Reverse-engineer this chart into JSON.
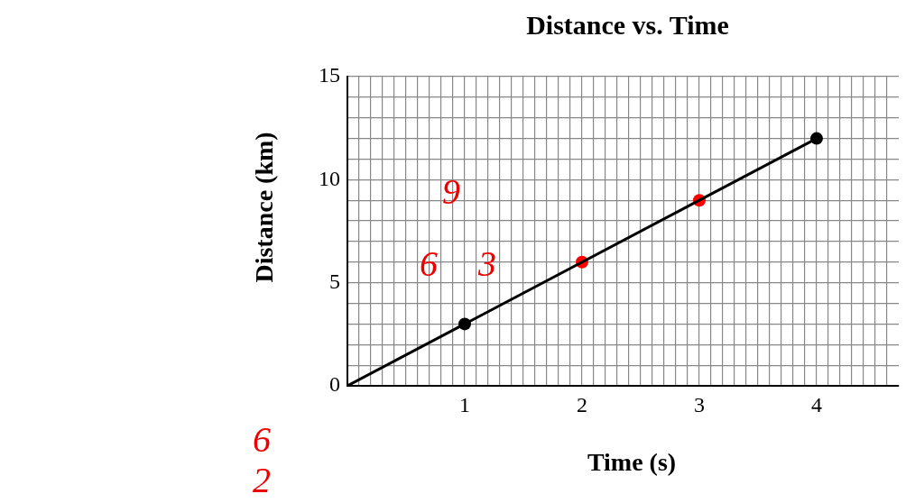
{
  "chart_data": {
    "type": "line",
    "title": "Distance vs. Time",
    "xlabel": "Time (s)",
    "ylabel": "Distance (km)",
    "xlim": [
      0,
      4.7
    ],
    "ylim": [
      0,
      15
    ],
    "xticks": [
      {
        "value": 0,
        "label": null
      },
      {
        "value": 0.1,
        "label": null
      },
      {
        "value": 0.2,
        "label": null
      },
      {
        "value": 0.3,
        "label": null
      },
      {
        "value": 0.4,
        "label": null
      },
      {
        "value": 0.5,
        "label": null
      },
      {
        "value": 0.6,
        "label": null
      },
      {
        "value": 0.7,
        "label": null
      },
      {
        "value": 0.8,
        "label": null
      },
      {
        "value": 0.9,
        "label": null
      },
      1,
      {
        "value": 1.1,
        "label": null
      },
      {
        "value": 1.2,
        "label": null
      },
      {
        "value": 1.3,
        "label": null
      },
      {
        "value": 1.4,
        "label": null
      },
      {
        "value": 1.5,
        "label": null
      },
      {
        "value": 1.6,
        "label": null
      },
      {
        "value": 1.7,
        "label": null
      },
      {
        "value": 1.8,
        "label": null
      },
      {
        "value": 1.9,
        "label": null
      },
      2,
      {
        "value": 2.1,
        "label": null
      },
      {
        "value": 2.2,
        "label": null
      },
      {
        "value": 2.3,
        "label": null
      },
      {
        "value": 2.4,
        "label": null
      },
      {
        "value": 2.5,
        "label": null
      },
      {
        "value": 2.6,
        "label": null
      },
      {
        "value": 2.7,
        "label": null
      },
      {
        "value": 2.8,
        "label": null
      },
      {
        "value": 2.9,
        "label": null
      },
      3,
      {
        "value": 3.1,
        "label": null
      },
      {
        "value": 3.2,
        "label": null
      },
      {
        "value": 3.3,
        "label": null
      },
      {
        "value": 3.4,
        "label": null
      },
      {
        "value": 3.5,
        "label": null
      },
      {
        "value": 3.6,
        "label": null
      },
      {
        "value": 3.7,
        "label": null
      },
      {
        "value": 3.8,
        "label": null
      },
      {
        "value": 3.9,
        "label": null
      },
      4,
      {
        "value": 4.1,
        "label": null
      },
      {
        "value": 4.2,
        "label": null
      },
      {
        "value": 4.3,
        "label": null
      },
      {
        "value": 4.4,
        "label": null
      },
      {
        "value": 4.5,
        "label": null
      },
      {
        "value": 4.6,
        "label": null
      }
    ],
    "yticks": [
      0,
      {
        "value": 1,
        "label": null
      },
      {
        "value": 2,
        "label": null
      },
      {
        "value": 3,
        "label": null
      },
      {
        "value": 4,
        "label": null
      },
      5,
      {
        "value": 6,
        "label": null
      },
      {
        "value": 7,
        "label": null
      },
      {
        "value": 8,
        "label": null
      },
      {
        "value": 9,
        "label": null
      },
      10,
      {
        "value": 11,
        "label": null
      },
      {
        "value": 12,
        "label": null
      },
      {
        "value": 13,
        "label": null
      },
      {
        "value": 14,
        "label": null
      },
      15
    ],
    "grid": true,
    "series": [
      {
        "color": "#000000",
        "x": [
          0,
          4
        ],
        "values": [
          0,
          12
        ],
        "marker": "none"
      },
      {
        "type": "scatter",
        "color": "#000000",
        "x": [
          1,
          4
        ],
        "values": [
          3,
          12
        ],
        "marker": "circle"
      },
      {
        "type": "scatter",
        "color": "#ff0000",
        "x": [
          2,
          3
        ],
        "values": [
          6,
          9
        ],
        "marker": "circle"
      }
    ],
    "annotations": [
      "9",
      "6",
      "3",
      "6",
      "2"
    ]
  }
}
